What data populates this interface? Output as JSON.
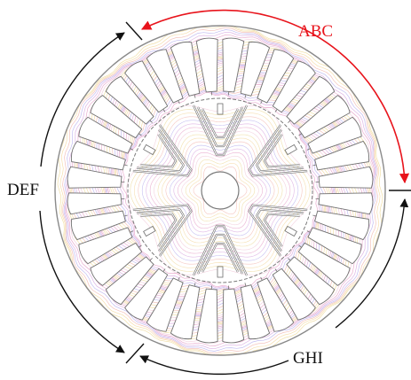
{
  "labels": {
    "abc": "ABC",
    "def": "DEF",
    "ghi": "GHI"
  },
  "colors": {
    "abc_arc": "#e8141c",
    "def_arc": "#111111",
    "ghi_arc": "#111111",
    "outline": "#8a8a8a",
    "flux_palette": [
      "#e6a0c8",
      "#d8a8e0",
      "#b8b0ee",
      "#f2b8b0",
      "#f4d8a0",
      "#eeda9a",
      "#f0c8d8"
    ]
  },
  "machine": {
    "stator_slots": 36,
    "rotor_poles": 6
  }
}
